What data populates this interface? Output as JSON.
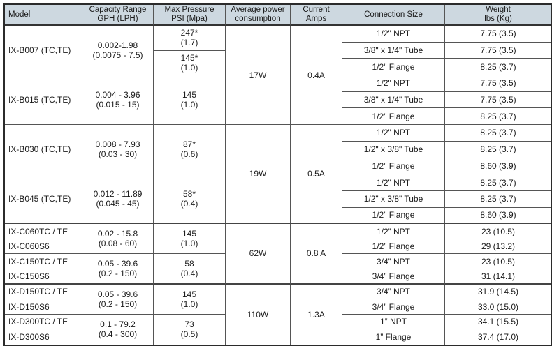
{
  "headers": [
    "Model",
    "Capacity Range\nGPH (LPH)",
    "Max Pressure\nPSI (Mpa)",
    "Average power\nconsumption",
    "Current\nAmps",
    "Connection Size",
    "Weight\nlbs (Kg)"
  ],
  "columns": {
    "model": [
      "IX-B007 (TC,TE)",
      "IX-B015 (TC,TE)",
      "IX-B030 (TC,TE)",
      "IX-B045 (TC,TE)",
      "IX-C060TC / TE",
      "IX-C060S6",
      "IX-C150TC / TE",
      "IX-C150S6",
      "IX-D150TC / TE",
      "IX-D150S6",
      "IX-D300TC / TE",
      "IX-D300S6"
    ],
    "capacity": [
      "0.002-1.98\n(0.0075 - 7.5)",
      "0.004 - 3.96\n(0.015 - 15)",
      "0.008 - 7.93\n(0.03 - 30)",
      "0.012 - 11.89\n(0.045 - 45)",
      "0.02 - 15.8\n(0.08 - 60)",
      "0.05 - 39.6\n(0.2 - 150)",
      "0.05 - 39.6\n(0.2 - 150)",
      "0.1 - 79.2\n(0.4 - 300)"
    ],
    "pressure": [
      "247*\n(1.7)",
      "145*\n(1.0)",
      "145\n(1.0)",
      "87*\n(0.6)",
      "58*\n(0.4)",
      "145\n(1.0)",
      "58\n(0.4)",
      "145\n(1.0)",
      "73\n(0.5)"
    ],
    "power": [
      "17W",
      "19W",
      "62W",
      "110W"
    ],
    "amps": [
      "0.4A",
      "0.5A",
      "0.8 A",
      "1.3A"
    ],
    "connection": [
      "1/2\" NPT",
      "3/8\" x 1/4\" Tube",
      "1/2\" Flange",
      "1/2\" NPT",
      "3/8\" x 1/4\" Tube",
      "1/2\" Flange",
      "1/2\" NPT",
      "1/2\" x 3/8\" Tube",
      "1/2\" Flange",
      "1/2\" NPT",
      "1/2\" x 3/8\" Tube",
      "1/2\" Flange",
      "1/2” NPT",
      "1/2” Flange",
      "3/4” NPT",
      "3/4” Flange",
      "3/4” NPT",
      "3/4” Flange",
      "1” NPT",
      "1” Flange"
    ],
    "weight": [
      "7.75 (3.5)",
      "7.75 (3.5)",
      "8.25 (3.7)",
      "7.75 (3.5)",
      "7.75 (3.5)",
      "8.25 (3.7)",
      "8.25 (3.7)",
      "8.25 (3.7)",
      "8.60 (3.9)",
      "8.25 (3.7)",
      "8.25 (3.7)",
      "8.60 (3.9)",
      "23 (10.5)",
      "29 (13.2)",
      "23  (10.5)",
      "31 (14.1)",
      "31.9 (14.5)",
      "33.0 (15.0)",
      "34.1 (15.5)",
      "37.4 (17.0)"
    ]
  }
}
